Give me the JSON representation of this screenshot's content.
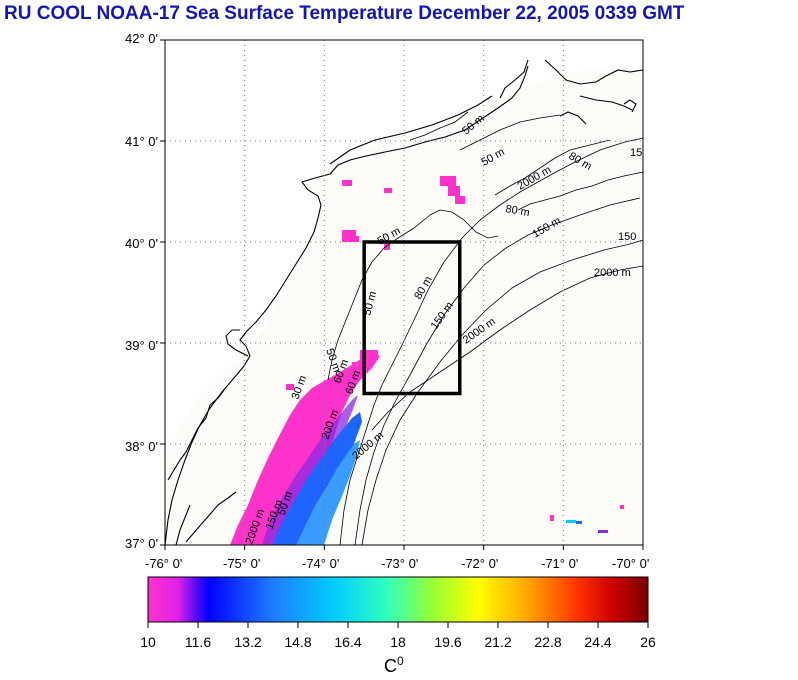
{
  "header": {
    "title": "RU COOL  NOAA-17 Sea Surface Temperature December 22, 2005 0339 GMT"
  },
  "map": {
    "lat_labels": [
      "42° 0'",
      "41° 0'",
      "40° 0'",
      "39° 0'",
      "38° 0'",
      "37° 0'"
    ],
    "lon_labels": [
      "-76° 0'",
      "-75° 0'",
      "-74° 0'",
      "-73° 0'",
      "-72° 0'",
      "-71° 0'",
      "-70° 0'"
    ],
    "lat_range": [
      37,
      42
    ],
    "lon_range": [
      -76,
      -70
    ],
    "contours": {
      "labels": [
        "50 m",
        "50 m",
        "80 m",
        "80 m",
        "150 m",
        "2000 m",
        "50 m",
        "80 m",
        "150 m",
        "2000 m",
        "2000 m",
        "50 m",
        "50 m",
        "30 m",
        "60 m",
        "150 m",
        "200 m",
        "2000 m",
        "150",
        "2000 m",
        "50 m",
        "60 m",
        "15"
      ]
    },
    "study_box": {
      "lon_min": -73.5,
      "lon_max": -72.3,
      "lat_min": 38.5,
      "lat_max": 40.0
    },
    "colors": {
      "land": "#ffffff",
      "ocean_nodata": "#fcfbf7",
      "coast": "#000000",
      "box": "#000000",
      "grid": "#7a7a7a"
    }
  },
  "colorbar": {
    "tick_labels": [
      "10",
      "11.6",
      "13.2",
      "14.8",
      "16.4",
      "18",
      "19.6",
      "21.2",
      "22.8",
      "24.4",
      "26"
    ],
    "min": 10,
    "max": 26,
    "units_text": "C",
    "units_sup": "0",
    "colors": [
      "#ff33cc",
      "#e020e8",
      "#0000ff",
      "#1e7cff",
      "#00ccff",
      "#33ffbb",
      "#99ff33",
      "#ffff00",
      "#ffa500",
      "#ff3300",
      "#cc0000",
      "#770000"
    ]
  }
}
